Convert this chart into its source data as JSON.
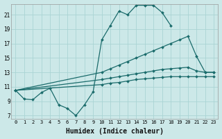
{
  "xlabel": "Humidex (Indice chaleur)",
  "bg_color": "#cce8e8",
  "grid_color": "#aad4d4",
  "line_color": "#1a6b6b",
  "xlim": [
    -0.5,
    23.5
  ],
  "ylim": [
    6.5,
    22.5
  ],
  "yticks": [
    7,
    9,
    11,
    13,
    15,
    17,
    19,
    21
  ],
  "xticks": [
    0,
    1,
    2,
    3,
    4,
    5,
    6,
    7,
    8,
    9,
    10,
    11,
    12,
    13,
    14,
    15,
    16,
    17,
    18,
    19,
    20,
    21,
    22,
    23
  ],
  "series": [
    {
      "x": [
        0,
        1,
        2,
        3,
        4,
        5,
        6,
        7,
        8,
        9,
        10,
        11,
        12,
        13,
        14,
        15,
        16,
        17,
        18
      ],
      "y": [
        10.5,
        9.3,
        9.2,
        10.2,
        10.8,
        8.5,
        8.0,
        7.0,
        8.5,
        10.3,
        17.5,
        19.5,
        21.5,
        21.0,
        22.3,
        22.3,
        22.3,
        21.3,
        19.5
      ]
    },
    {
      "x": [
        0,
        10,
        11,
        12,
        13,
        14,
        15,
        16,
        17,
        18,
        19,
        20,
        21,
        22,
        23
      ],
      "y": [
        10.5,
        13.0,
        13.5,
        14.0,
        14.5,
        15.0,
        15.5,
        16.0,
        16.5,
        17.0,
        17.5,
        18.0,
        15.2,
        13.0,
        13.0
      ]
    },
    {
      "x": [
        0,
        10,
        11,
        12,
        13,
        14,
        15,
        16,
        17,
        18,
        19,
        20,
        21,
        22,
        23
      ],
      "y": [
        10.5,
        12.0,
        12.2,
        12.4,
        12.6,
        12.8,
        13.0,
        13.2,
        13.4,
        13.5,
        13.6,
        13.7,
        13.2,
        13.0,
        13.0
      ]
    },
    {
      "x": [
        0,
        10,
        11,
        12,
        13,
        14,
        15,
        16,
        17,
        18,
        19,
        20,
        21,
        22,
        23
      ],
      "y": [
        10.5,
        11.3,
        11.5,
        11.6,
        11.8,
        12.0,
        12.1,
        12.2,
        12.3,
        12.4,
        12.4,
        12.4,
        12.4,
        12.4,
        12.4
      ]
    }
  ]
}
